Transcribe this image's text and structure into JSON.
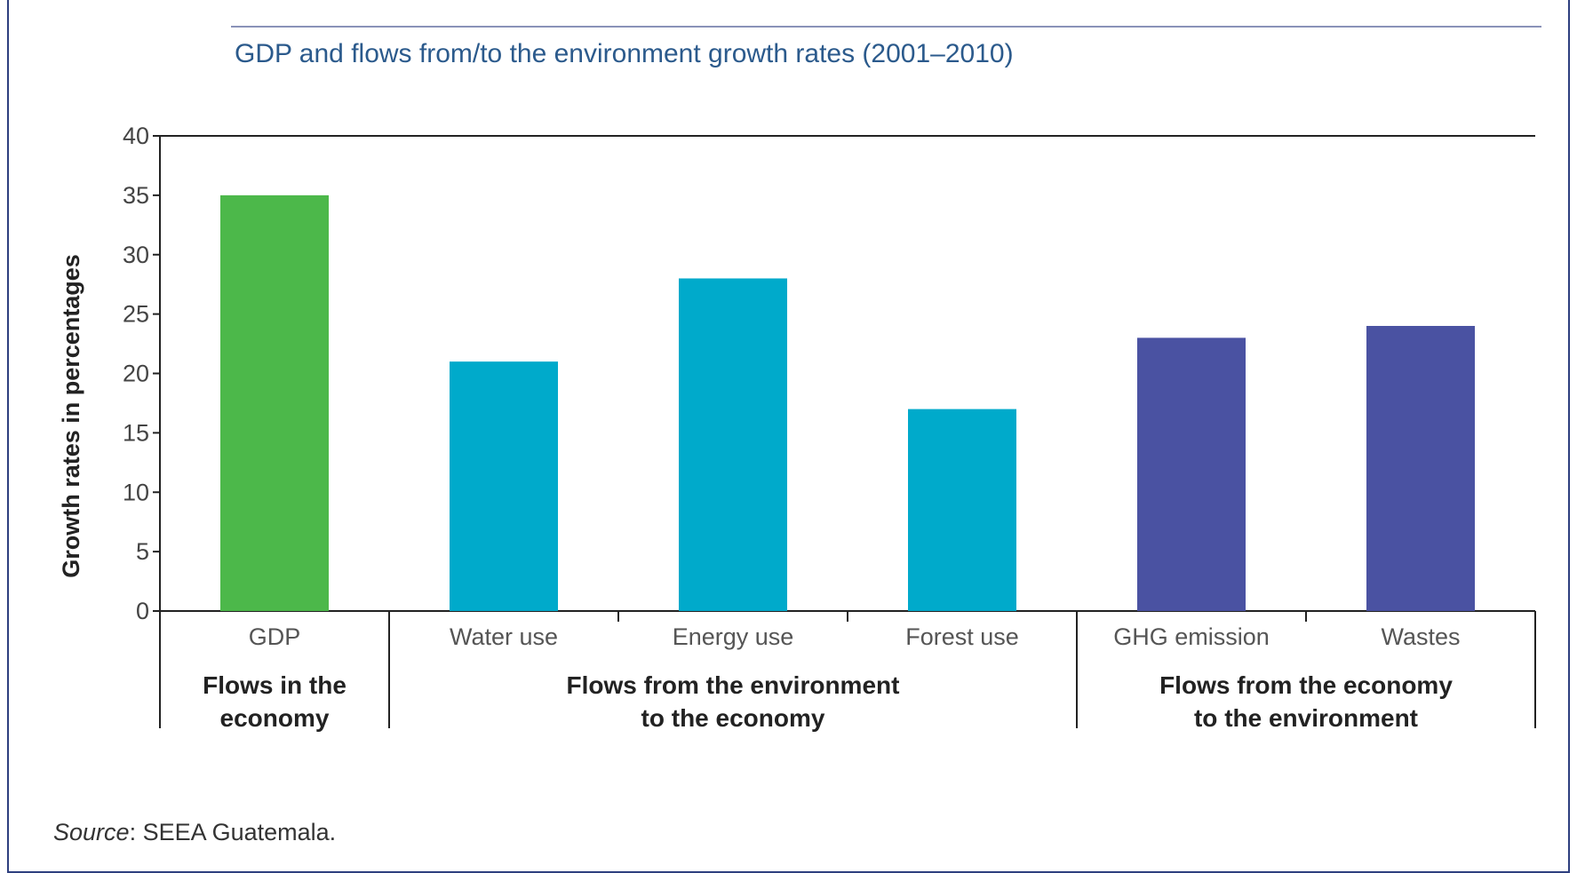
{
  "chart_data": {
    "type": "bar",
    "title": "GDP and flows from/to the environment growth rates (2001–2010)",
    "ylabel": "Growth rates in percentages",
    "xlabel": "",
    "ylim": [
      0,
      40
    ],
    "yticks": [
      0,
      5,
      10,
      15,
      20,
      25,
      30,
      35,
      40
    ],
    "categories": [
      "GDP",
      "Water use",
      "Energy use",
      "Forest use",
      "GHG emission",
      "Wastes"
    ],
    "values": [
      35,
      21,
      28,
      17,
      23,
      24
    ],
    "bar_colors": [
      "#4cb84a",
      "#00aacb",
      "#00aacb",
      "#00aacb",
      "#4a52a2",
      "#4a52a2"
    ],
    "groups": [
      {
        "lines": [
          "Flows in the",
          "economy"
        ],
        "start": 0,
        "end": 0
      },
      {
        "lines": [
          "Flows from the environment",
          "to the economy"
        ],
        "start": 1,
        "end": 3
      },
      {
        "lines": [
          "Flows from the economy",
          "to the environment"
        ],
        "start": 4,
        "end": 5
      }
    ],
    "grid": false,
    "legend": "none"
  },
  "source": {
    "label": "Source",
    "text": ": SEEA Guatemala."
  }
}
